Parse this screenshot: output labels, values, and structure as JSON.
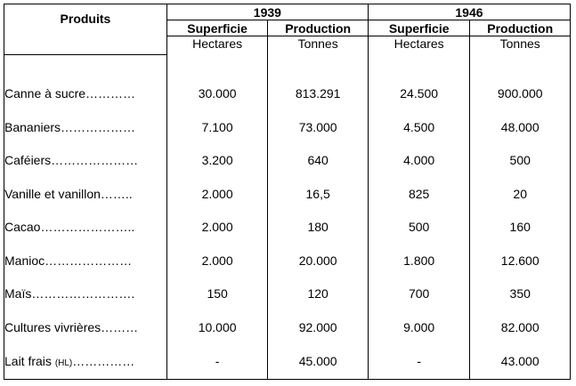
{
  "header": {
    "produits": "Produits",
    "year_1": "1939",
    "year_2": "1946",
    "superficie": "Superficie",
    "production": "Production",
    "hectares": "Hectares",
    "tonnes": "Tonnes"
  },
  "rows": [
    {
      "name": "Canne à sucre…………",
      "unit": "",
      "s1939": "30.000",
      "p1939": "813.291",
      "s1946": "24.500",
      "p1946": "900.000"
    },
    {
      "name": "Bananiers………………",
      "unit": "",
      "s1939": "7.100",
      "p1939": "73.000",
      "s1946": "4.500",
      "p1946": "48.000"
    },
    {
      "name": "Caféiers…………………",
      "unit": "",
      "s1939": "3.200",
      "p1939": "640",
      "s1946": "4.000",
      "p1946": "500"
    },
    {
      "name": "Vanille et vanillon……..",
      "unit": "",
      "s1939": "2.000",
      "p1939": "16,5",
      "s1946": "825",
      "p1946": "20"
    },
    {
      "name": "Cacao…………………..",
      "unit": "",
      "s1939": "2.000",
      "p1939": "180",
      "s1946": "500",
      "p1946": "160"
    },
    {
      "name": "Manioc…………………",
      "unit": "",
      "s1939": "2.000",
      "p1939": "20.000",
      "s1946": "1.800",
      "p1946": "12.600"
    },
    {
      "name": "Maïs…………………….",
      "unit": "",
      "s1939": "150",
      "p1939": "120",
      "s1946": "700",
      "p1946": "350"
    },
    {
      "name": "Cultures vivrières………",
      "unit": "",
      "s1939": "10.000",
      "p1939": "92.000",
      "s1946": "9.000",
      "p1946": "82.000"
    },
    {
      "name": "Lait frais ",
      "unit": "(HL)",
      "name_tail": "……………",
      "s1939": "-",
      "p1939": "45.000",
      "s1946": "-",
      "p1946": "43.000"
    }
  ]
}
